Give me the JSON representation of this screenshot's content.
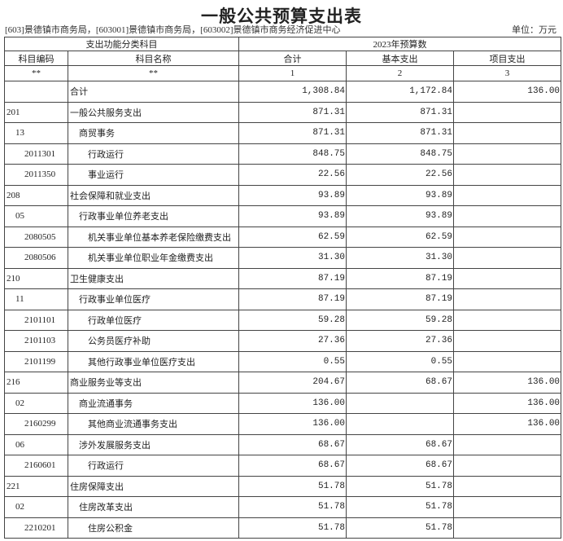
{
  "title": "一般公共预算支出表",
  "subtitle": "[603]景德镇市商务局，[603001]景德镇市商务局，[603002]景德镇市商务经济促进中心",
  "unit": "单位：万元",
  "header": {
    "group1": "支出功能分类科目",
    "group2": "2023年预算数",
    "code": "科目编码",
    "name": "科目名称",
    "total": "合计",
    "basic": "基本支出",
    "project": "项目支出",
    "idx_code": "**",
    "idx_name": "**",
    "idx_total": "1",
    "idx_basic": "2",
    "idx_project": "3"
  },
  "rows": [
    {
      "level": 1,
      "code": "",
      "name": "合计",
      "total": "1,308.84",
      "basic": "1,172.84",
      "project": "136.00"
    },
    {
      "level": 1,
      "code": "201",
      "name": "一般公共服务支出",
      "total": "871.31",
      "basic": "871.31",
      "project": ""
    },
    {
      "level": 2,
      "code": "13",
      "name": "商贸事务",
      "total": "871.31",
      "basic": "871.31",
      "project": ""
    },
    {
      "level": 3,
      "code": "2011301",
      "name": "行政运行",
      "total": "848.75",
      "basic": "848.75",
      "project": ""
    },
    {
      "level": 3,
      "code": "2011350",
      "name": "事业运行",
      "total": "22.56",
      "basic": "22.56",
      "project": ""
    },
    {
      "level": 1,
      "code": "208",
      "name": "社会保障和就业支出",
      "total": "93.89",
      "basic": "93.89",
      "project": ""
    },
    {
      "level": 2,
      "code": "05",
      "name": "行政事业单位养老支出",
      "total": "93.89",
      "basic": "93.89",
      "project": ""
    },
    {
      "level": 3,
      "code": "2080505",
      "name": "机关事业单位基本养老保险缴费支出",
      "total": "62.59",
      "basic": "62.59",
      "project": ""
    },
    {
      "level": 3,
      "code": "2080506",
      "name": "机关事业单位职业年金缴费支出",
      "total": "31.30",
      "basic": "31.30",
      "project": ""
    },
    {
      "level": 1,
      "code": "210",
      "name": "卫生健康支出",
      "total": "87.19",
      "basic": "87.19",
      "project": ""
    },
    {
      "level": 2,
      "code": "11",
      "name": "行政事业单位医疗",
      "total": "87.19",
      "basic": "87.19",
      "project": ""
    },
    {
      "level": 3,
      "code": "2101101",
      "name": "行政单位医疗",
      "total": "59.28",
      "basic": "59.28",
      "project": ""
    },
    {
      "level": 3,
      "code": "2101103",
      "name": "公务员医疗补助",
      "total": "27.36",
      "basic": "27.36",
      "project": ""
    },
    {
      "level": 3,
      "code": "2101199",
      "name": "其他行政事业单位医疗支出",
      "total": "0.55",
      "basic": "0.55",
      "project": ""
    },
    {
      "level": 1,
      "code": "216",
      "name": "商业服务业等支出",
      "total": "204.67",
      "basic": "68.67",
      "project": "136.00"
    },
    {
      "level": 2,
      "code": "02",
      "name": "商业流通事务",
      "total": "136.00",
      "basic": "",
      "project": "136.00"
    },
    {
      "level": 3,
      "code": "2160299",
      "name": "其他商业流通事务支出",
      "total": "136.00",
      "basic": "",
      "project": "136.00"
    },
    {
      "level": 2,
      "code": "06",
      "name": "涉外发展服务支出",
      "total": "68.67",
      "basic": "68.67",
      "project": ""
    },
    {
      "level": 3,
      "code": "2160601",
      "name": "行政运行",
      "total": "68.67",
      "basic": "68.67",
      "project": ""
    },
    {
      "level": 1,
      "code": "221",
      "name": "住房保障支出",
      "total": "51.78",
      "basic": "51.78",
      "project": ""
    },
    {
      "level": 2,
      "code": "02",
      "name": "住房改革支出",
      "total": "51.78",
      "basic": "51.78",
      "project": ""
    },
    {
      "level": 3,
      "code": "2210201",
      "name": "住房公积金",
      "total": "51.78",
      "basic": "51.78",
      "project": ""
    }
  ]
}
